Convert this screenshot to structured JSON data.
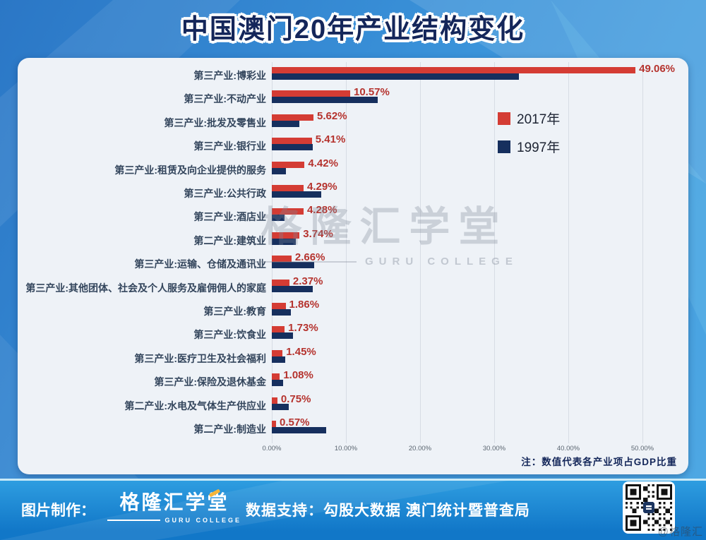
{
  "title": "中国澳门20年产业结构变化",
  "legend": {
    "items": [
      {
        "label": "2017年",
        "color": "#d43c34"
      },
      {
        "label": "1997年",
        "color": "#162f5e"
      }
    ]
  },
  "chart_data": {
    "type": "bar",
    "orientation": "horizontal",
    "title": "中国澳门20年产业结构变化",
    "note": "注：数值代表各产业项占GDP比重",
    "categories": [
      "第三产业:博彩业",
      "第三产业:不动产业",
      "第三产业:批发及零售业",
      "第三产业:银行业",
      "第三产业:租赁及向企业提供的服务",
      "第三产业:公共行政",
      "第三产业:酒店业",
      "第二产业:建筑业",
      "第三产业:运输、仓储及通讯业",
      "第三产业:其他团体、社会及个人服务及雇佣佣人的家庭",
      "第三产业:教育",
      "第三产业:饮食业",
      "第三产业:医疗卫生及社会福利",
      "第三产业:保险及退休基金",
      "第二产业:水电及气体生产供应业",
      "第二产业:制造业"
    ],
    "series": [
      {
        "name": "2017年",
        "color": "#d43c34",
        "values": [
          49.06,
          10.57,
          5.62,
          5.41,
          4.42,
          4.29,
          4.28,
          3.74,
          2.66,
          2.37,
          1.86,
          1.73,
          1.45,
          1.08,
          0.75,
          0.57
        ],
        "labels": [
          "49.06%",
          "10.57%",
          "5.62%",
          "5.41%",
          "4.42%",
          "4.29%",
          "4.28%",
          "3.74%",
          "2.66%",
          "2.37%",
          "1.86%",
          "1.73%",
          "1.45%",
          "1.08%",
          "0.75%",
          "0.57%"
        ]
      },
      {
        "name": "1997年",
        "color": "#162f5e",
        "values": [
          33.3,
          14.3,
          3.7,
          5.5,
          1.9,
          6.7,
          1.7,
          3.2,
          5.7,
          5.5,
          2.6,
          2.9,
          1.8,
          1.5,
          2.3,
          7.3
        ]
      }
    ],
    "xlim": [
      0,
      55
    ],
    "x_axis": {
      "tick_labels": [
        "0.00%",
        "10.00%",
        "20.00%",
        "30.00%",
        "40.00%",
        "50.00%"
      ],
      "tick_values": [
        0,
        10,
        20,
        30,
        40,
        50
      ]
    },
    "legend_position": "upper right",
    "grid": "vertical"
  },
  "watermark": {
    "text": "格隆汇学堂",
    "subtext": "GURU COLLEGE"
  },
  "footer": {
    "credit_label": "图片制作：",
    "brand_name": "格隆汇学堂",
    "brand_subtext": "GURU COLLEGE",
    "support_text": "数据支持：勾股大数据  澳门统计暨普查局",
    "qr_icon": "qr-code",
    "corner_watermark": "@格隆汇"
  }
}
